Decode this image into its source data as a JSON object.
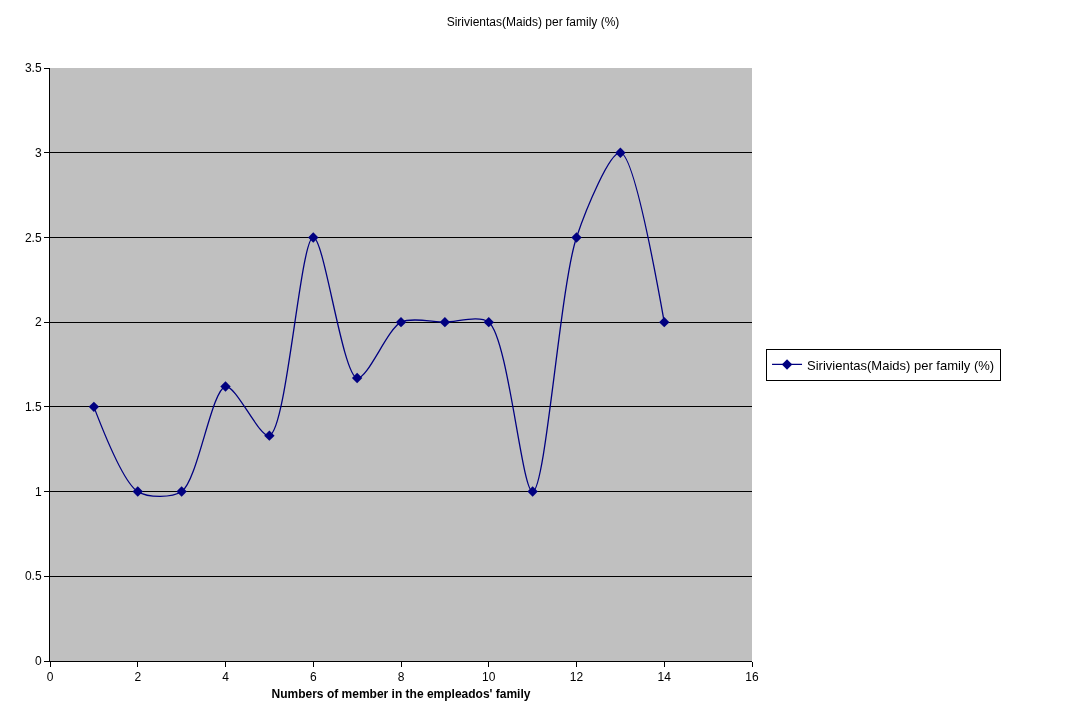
{
  "chart_data": {
    "type": "line",
    "title": "Sirivientas(Maids) per family (%)",
    "xlabel": "Numbers of member in the empleados' family",
    "x": [
      1,
      2,
      3,
      4,
      5,
      6,
      7,
      8,
      9,
      10,
      11,
      12,
      13,
      14
    ],
    "series": [
      {
        "name": "Sirivientas(Maids) per family (%)",
        "color": "#000080",
        "values": [
          1.5,
          1.0,
          1.0,
          1.62,
          1.33,
          2.5,
          1.67,
          2.0,
          2.0,
          2.0,
          1.0,
          2.5,
          3.0,
          2.0
        ]
      }
    ],
    "xlim": [
      0,
      16
    ],
    "xticks": [
      0,
      2,
      4,
      6,
      8,
      10,
      12,
      14,
      16
    ],
    "ylim": [
      0,
      3.5
    ],
    "yticks": [
      0,
      0.5,
      1,
      1.5,
      2,
      2.5,
      3,
      3.5
    ],
    "grid": "y",
    "legend": "right",
    "marker": "diamond",
    "line_style": "solid"
  }
}
